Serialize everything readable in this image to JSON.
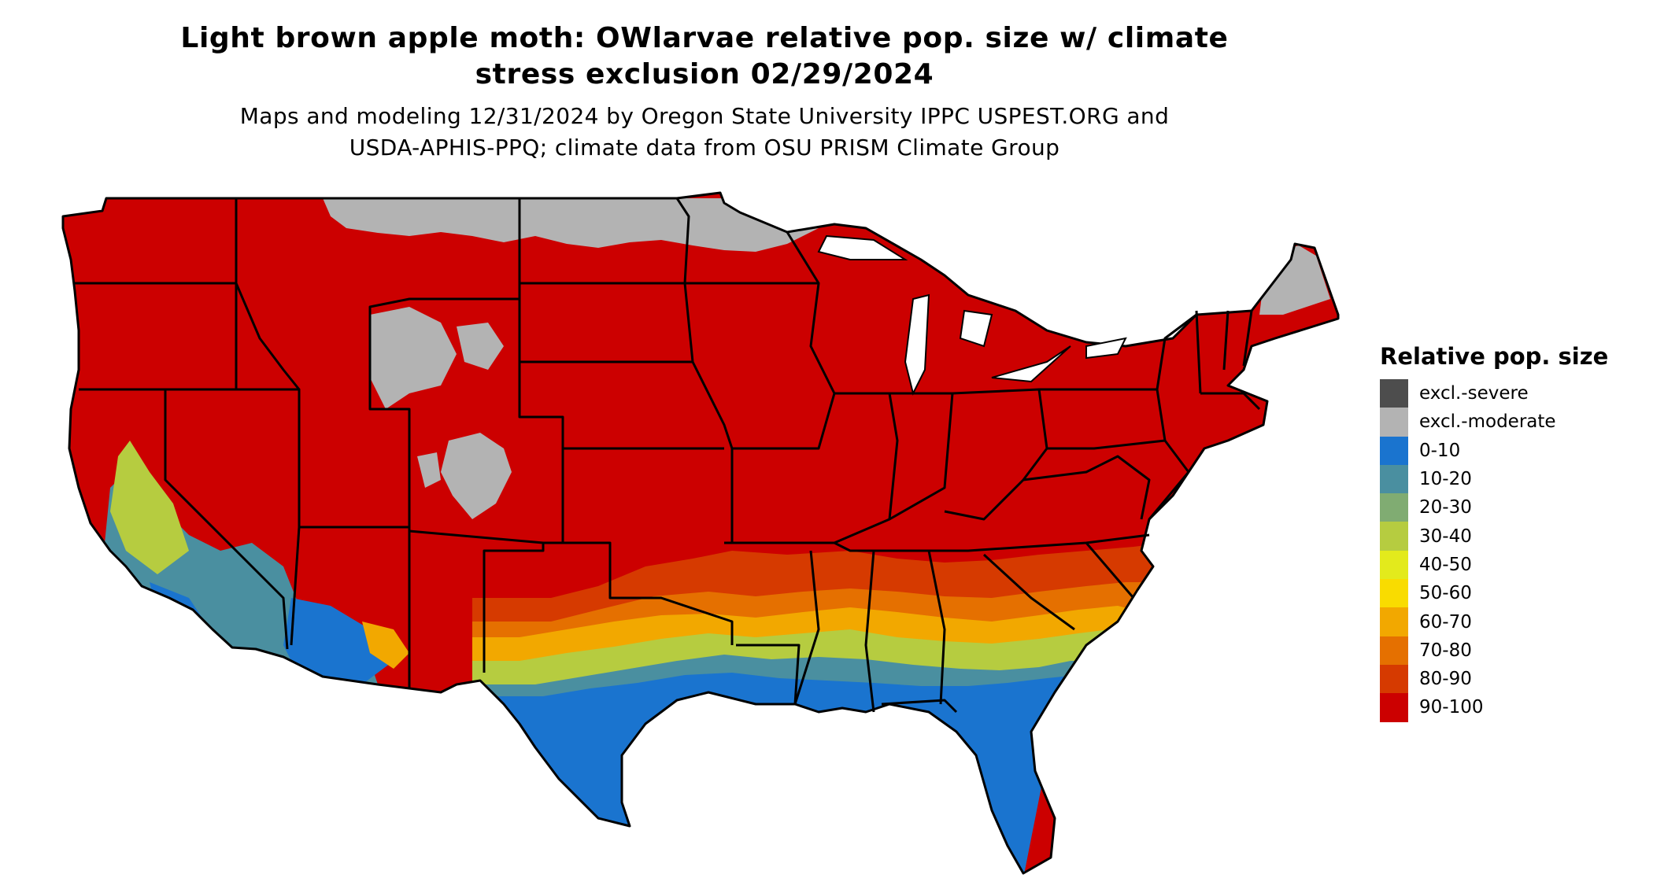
{
  "title": {
    "line1": "Light brown apple moth: OWlarvae relative pop. size w/ climate",
    "line2": "stress exclusion 02/29/2024"
  },
  "subtitle": {
    "line1": "Maps and modeling 12/31/2024 by Oregon State University IPPC USPEST.ORG and",
    "line2": "USDA-APHIS-PPQ; climate data from OSU PRISM Climate Group"
  },
  "legend": {
    "title": "Relative pop. size",
    "items": [
      {
        "label": "excl.-severe",
        "color": "#4d4d4d"
      },
      {
        "label": "excl.-moderate",
        "color": "#b3b3b3"
      },
      {
        "label": "0-10",
        "color": "#1a74cf"
      },
      {
        "label": "10-20",
        "color": "#4a8fa0"
      },
      {
        "label": "20-30",
        "color": "#80ac72"
      },
      {
        "label": "30-40",
        "color": "#b6cc40"
      },
      {
        "label": "40-50",
        "color": "#e3ea1c"
      },
      {
        "label": "50-60",
        "color": "#f9dc00"
      },
      {
        "label": "60-70",
        "color": "#f2a800"
      },
      {
        "label": "70-80",
        "color": "#e57000"
      },
      {
        "label": "80-90",
        "color": "#d63a00"
      },
      {
        "label": "90-100",
        "color": "#cc0000"
      }
    ]
  },
  "map": {
    "region": "conterminous-us",
    "background_class": "90-100",
    "zones": [
      "excl.-moderate",
      "0-10",
      "10-20",
      "20-30",
      "30-40",
      "60-70",
      "70-80",
      "80-90",
      "90-100"
    ]
  }
}
